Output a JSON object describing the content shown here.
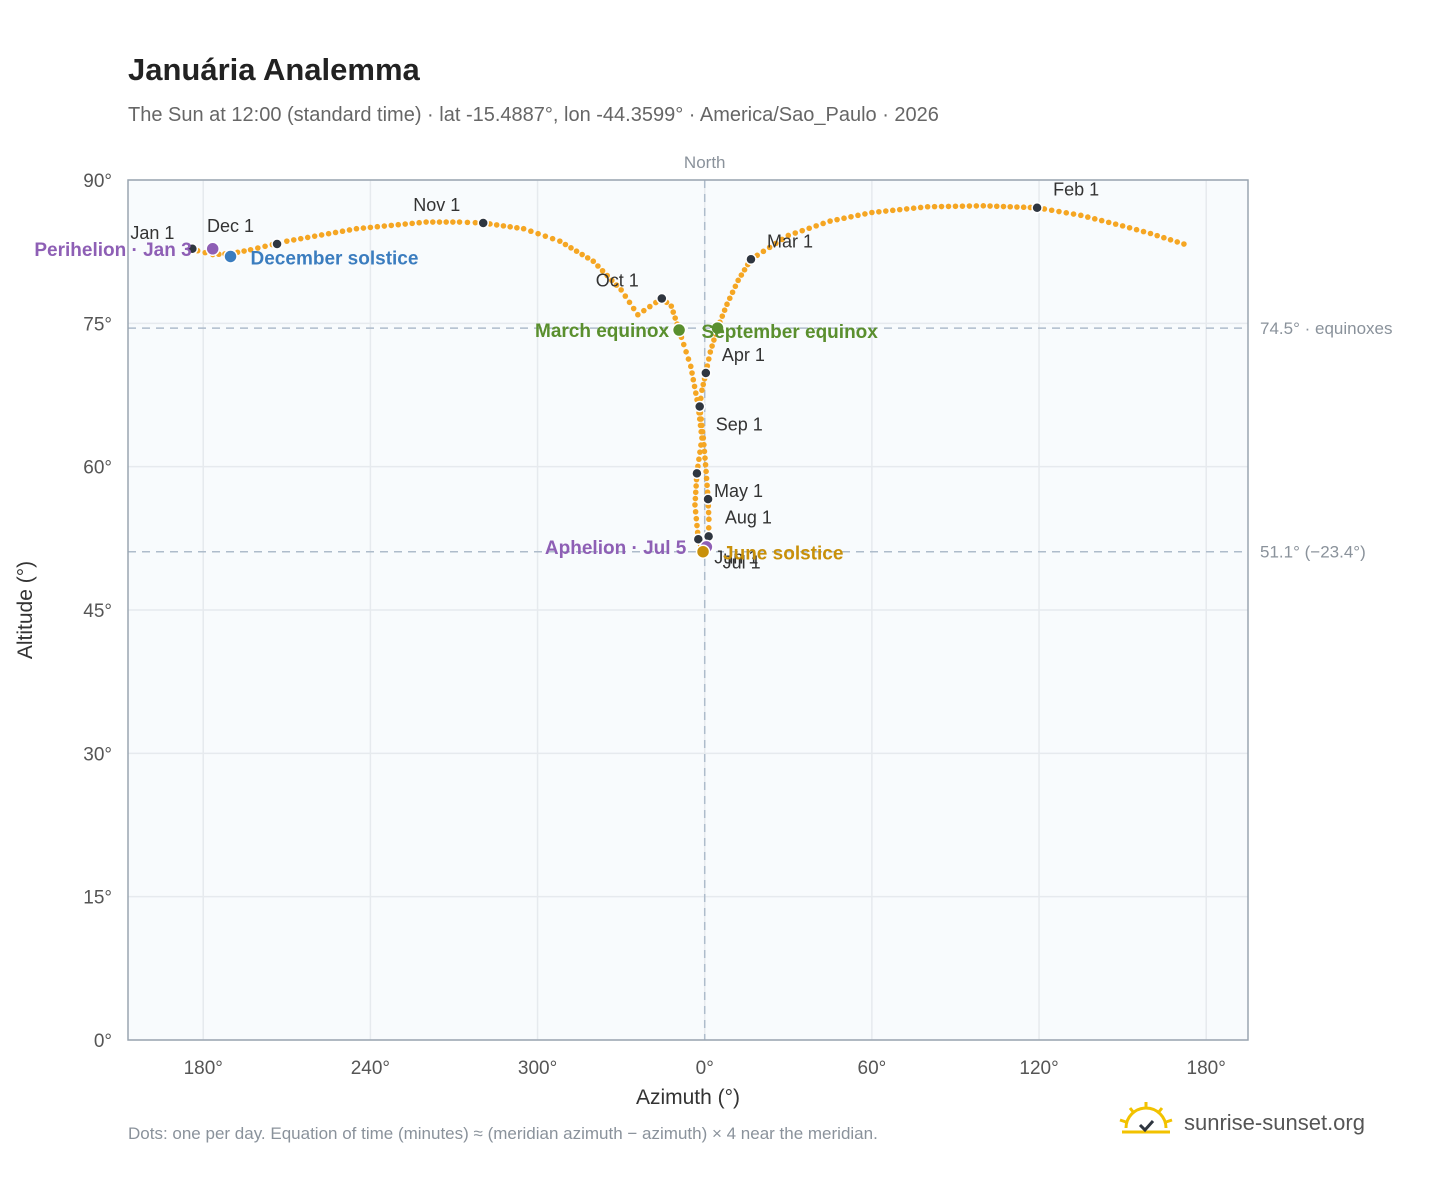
{
  "title": "Januária Analemma",
  "subtitle": "The Sun at 12:00 (standard time) · lat -15.4887°, lon -44.3599° · America/Sao_Paulo · 2026",
  "footnote": "Dots: one per day. Equation of time (minutes) ≈ (meridian azimuth − azimuth) × 4 near the meridian.",
  "brand": "sunrise-sunset.org",
  "colors": {
    "curve": "#f5a623",
    "month": "#2f3640",
    "perihelion": "#8e5fb5",
    "december_solstice": "#3b7dbf",
    "equinox": "#5a8f2e",
    "june_solstice": "#c8900a",
    "grid": "#e6eaee",
    "plot_bg": "#f8fbfd",
    "axis": "#9aa5b1",
    "ref_line": "#aebccb"
  },
  "chart_data": {
    "type": "scatter",
    "xlabel": "Azimuth (°)",
    "ylabel": "Altitude (°)",
    "x_ticks": [
      "180°",
      "240°",
      "300°",
      "0°",
      "60°",
      "120°",
      "180°"
    ],
    "x_tick_values": [
      -180,
      -120,
      -60,
      0,
      60,
      120,
      180
    ],
    "y_ticks": [
      "0°",
      "15°",
      "30°",
      "45°",
      "60°",
      "75°",
      "90°"
    ],
    "y_tick_values": [
      0,
      15,
      30,
      45,
      60,
      75,
      90
    ],
    "xlim": [
      -207,
      195
    ],
    "ylim": [
      0,
      90
    ],
    "grid": true,
    "north_label": "North",
    "north_azimuth": 0,
    "reference_lines": [
      {
        "y": 74.5,
        "label": "74.5° · equinoxes"
      },
      {
        "y": 51.1,
        "label": "51.1° (−23.4°)"
      }
    ],
    "path": [
      [
        -183.9,
        82.8
      ],
      [
        -182,
        82.6
      ],
      [
        -176.6,
        82.2
      ],
      [
        -170,
        82.3
      ],
      [
        -163,
        82.7
      ],
      [
        -150,
        83.6
      ],
      [
        -125,
        84.9
      ],
      [
        -100,
        85.6
      ],
      [
        -88,
        85.6
      ],
      [
        -79.5,
        85.5
      ],
      [
        -65,
        84.9
      ],
      [
        -52,
        83.6
      ],
      [
        -40,
        81.5
      ],
      [
        -30,
        78.5
      ],
      [
        -24,
        75.9
      ],
      [
        -15.4,
        77.6
      ],
      [
        -12,
        76.8
      ],
      [
        -9.2,
        74.3
      ],
      [
        -5,
        70.5
      ],
      [
        -2.3,
        66.3
      ],
      [
        -1,
        63.0
      ],
      [
        -2.8,
        59.3
      ],
      [
        -3.5,
        56
      ],
      [
        -2.3,
        52.4
      ],
      [
        -0.6,
        51.1
      ],
      [
        0.6,
        51.6
      ],
      [
        1.4,
        52.7
      ],
      [
        1.5,
        54.5
      ],
      [
        1.2,
        56.6
      ],
      [
        0.5,
        59.5
      ],
      [
        -0.5,
        63
      ],
      [
        -1.8,
        66.3
      ],
      [
        -1,
        68
      ],
      [
        0.4,
        69.8
      ],
      [
        2,
        72
      ],
      [
        4.6,
        74.5
      ],
      [
        8,
        77
      ],
      [
        12,
        79.5
      ],
      [
        16.6,
        81.7
      ],
      [
        30,
        84.2
      ],
      [
        45,
        85.7
      ],
      [
        60,
        86.6
      ],
      [
        80,
        87.2
      ],
      [
        100,
        87.3
      ],
      [
        119.3,
        87.1
      ],
      [
        135,
        86.3
      ],
      [
        150,
        85.2
      ],
      [
        160,
        84.4
      ],
      [
        172,
        83.3
      ]
    ],
    "month_markers": [
      {
        "label": "Jan 1",
        "x": -183.9,
        "y": 82.8
      },
      {
        "label": "Feb 1",
        "x": 119.3,
        "y": 87.1
      },
      {
        "label": "Mar 1",
        "x": 16.6,
        "y": 81.7
      },
      {
        "label": "Apr 1",
        "x": 0.4,
        "y": 69.8
      },
      {
        "label": "May 1",
        "x": 1.2,
        "y": 56.6
      },
      {
        "label": "Jun 1",
        "x": -2.3,
        "y": 52.4
      },
      {
        "label": "Jul 1",
        "x": 1.4,
        "y": 52.7
      },
      {
        "label": "Aug 1",
        "x": -2.8,
        "y": 59.3
      },
      {
        "label": "Sep 1",
        "x": -1.8,
        "y": 66.3
      },
      {
        "label": "Oct 1",
        "x": -15.4,
        "y": 77.6
      },
      {
        "label": "Nov 1",
        "x": -79.5,
        "y": 85.5
      },
      {
        "label": "Dec 1",
        "x": -153.5,
        "y": 83.3
      }
    ],
    "events": [
      {
        "label": "Perihelion · Jan 3",
        "x": -176.6,
        "y": 82.8,
        "color_key": "perihelion"
      },
      {
        "label": "December solstice",
        "x": -170.2,
        "y": 82.0,
        "color_key": "december_solstice"
      },
      {
        "label": "March equinox",
        "x": -9.2,
        "y": 74.3,
        "color_key": "equinox"
      },
      {
        "label": "September equinox",
        "x": 4.6,
        "y": 74.5,
        "color_key": "equinox"
      },
      {
        "label": "Aphelion · Jul 5",
        "x": 0.6,
        "y": 51.6,
        "color_key": "perihelion"
      },
      {
        "label": "June solstice",
        "x": -0.6,
        "y": 51.1,
        "color_key": "june_solstice"
      }
    ]
  }
}
